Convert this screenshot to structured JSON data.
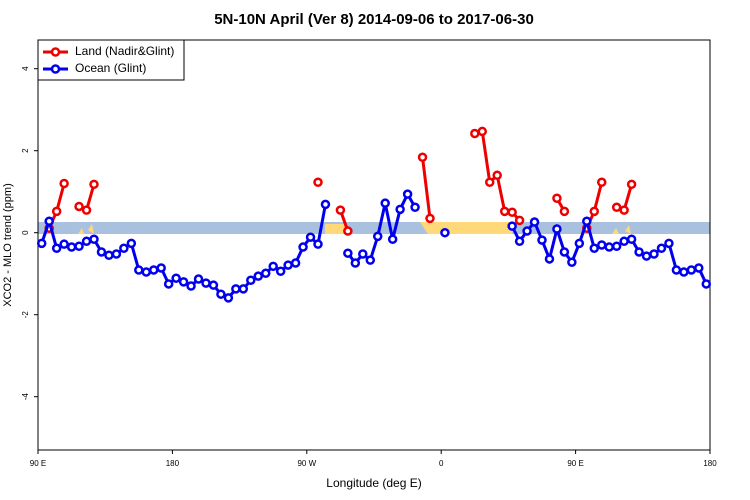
{
  "chart_data": {
    "type": "line",
    "title": "5N-10N April (Ver 8)   2014-09-06 to 2017-06-30",
    "x_label": "Longitude (deg E)",
    "y_label": "XCO2 - MLO trend (ppm)",
    "xlim": [
      90,
      540
    ],
    "ylim": [
      -5.3,
      4.7
    ],
    "xticks": [
      {
        "value": 90,
        "label": "90 E"
      },
      180,
      {
        "value": 270,
        "label": "90 W"
      },
      {
        "value": 360,
        "label": "0"
      },
      {
        "value": 450,
        "label": "90 E"
      },
      {
        "value": 540,
        "label": "180"
      }
    ],
    "yticks": [
      -4,
      -2,
      0,
      2,
      4
    ],
    "legend": "top-left",
    "x": [
      92.5,
      97.5,
      102.5,
      107.5,
      112.5,
      117.5,
      122.5,
      127.5,
      132.5,
      137.5,
      142.5,
      147.5,
      152.5,
      157.5,
      162.5,
      167.5,
      172.5,
      177.5,
      182.5,
      187.5,
      192.5,
      197.5,
      202.5,
      207.5,
      212.5,
      217.5,
      222.5,
      227.5,
      232.5,
      237.5,
      242.5,
      247.5,
      252.5,
      257.5,
      262.5,
      267.5,
      272.5,
      277.5,
      282.5,
      287.5,
      292.5,
      297.5,
      302.5,
      307.5,
      312.5,
      317.5,
      322.5,
      327.5,
      332.5,
      337.5,
      342.5,
      347.5,
      352.5,
      357.5,
      362.5,
      367.5,
      372.5,
      377.5,
      382.5,
      387.5,
      392.5,
      397.5,
      402.5,
      407.5,
      412.5,
      417.5,
      422.5,
      427.5,
      432.5,
      437.5,
      442.5,
      447.5,
      452.5,
      457.5,
      462.5,
      467.5,
      472.5,
      477.5,
      482.5,
      487.5,
      492.5,
      497.5,
      502.5,
      507.5,
      512.5,
      517.5,
      522.5,
      527.5,
      532.5,
      537.5
    ],
    "series": [
      {
        "name": "Land (Nadir&Glint)",
        "color": "#ee0000",
        "values": [
          null,
          0.11,
          0.52,
          1.2,
          null,
          0.64,
          0.55,
          1.18,
          null,
          null,
          null,
          null,
          null,
          null,
          null,
          null,
          null,
          null,
          null,
          null,
          null,
          null,
          null,
          null,
          null,
          null,
          null,
          null,
          null,
          null,
          null,
          null,
          null,
          null,
          null,
          null,
          null,
          1.23,
          null,
          null,
          0.55,
          0.04,
          null,
          null,
          null,
          null,
          null,
          null,
          null,
          null,
          null,
          1.84,
          0.35,
          null,
          null,
          null,
          null,
          null,
          2.42,
          2.47,
          1.23,
          1.4,
          0.52,
          0.5,
          0.3,
          null,
          null,
          null,
          null,
          0.84,
          0.52,
          null,
          null,
          0.11,
          0.52,
          1.23,
          null,
          0.62,
          0.55,
          1.18,
          null,
          null,
          null,
          null,
          null,
          null,
          null,
          null,
          null,
          null
        ]
      },
      {
        "name": "Ocean (Glint)",
        "color": "#0000ee",
        "values": [
          -0.26,
          0.28,
          -0.38,
          -0.28,
          -0.35,
          -0.33,
          -0.21,
          -0.16,
          -0.47,
          -0.55,
          -0.52,
          -0.38,
          -0.26,
          -0.91,
          -0.96,
          -0.91,
          -0.86,
          -1.25,
          -1.11,
          -1.2,
          -1.3,
          -1.13,
          -1.23,
          -1.28,
          -1.5,
          -1.59,
          -1.37,
          -1.37,
          -1.16,
          -1.06,
          -0.99,
          -0.82,
          -0.94,
          -0.79,
          -0.74,
          -0.35,
          -0.11,
          -0.28,
          0.69,
          null,
          null,
          -0.5,
          -0.74,
          -0.52,
          -0.67,
          -0.09,
          0.72,
          -0.16,
          0.57,
          0.94,
          0.62,
          null,
          null,
          null,
          0,
          null,
          null,
          null,
          null,
          null,
          null,
          null,
          null,
          0.16,
          -0.21,
          0.04,
          0.26,
          -0.18,
          -0.64,
          0.09,
          -0.47,
          -0.72,
          -0.26,
          0.28,
          -0.38,
          -0.3,
          -0.35,
          -0.33,
          -0.21,
          -0.16,
          -0.47,
          -0.57,
          -0.52,
          -0.38,
          -0.26,
          -0.91,
          -0.96,
          -0.91,
          -0.86,
          -1.25
        ]
      }
    ]
  }
}
